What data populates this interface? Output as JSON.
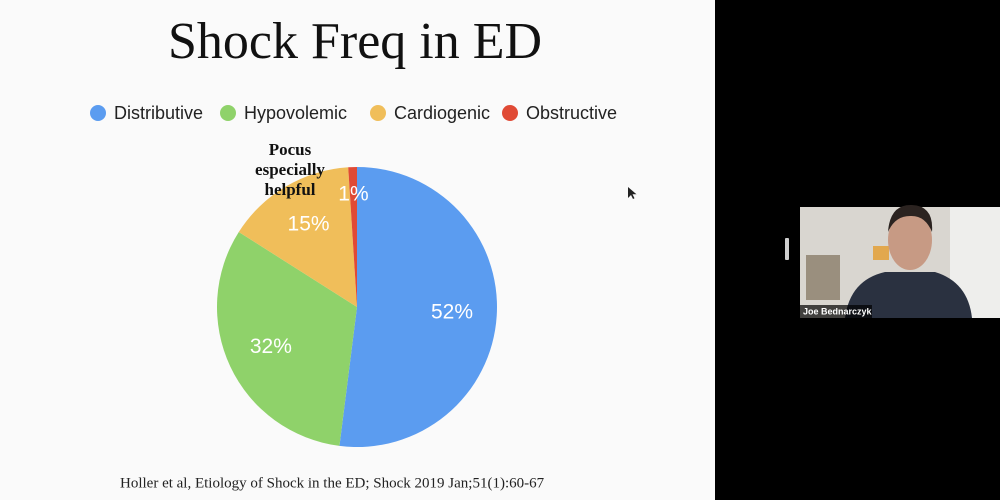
{
  "chart_data": {
    "type": "pie",
    "title": "Shock Freq in ED",
    "categories": [
      "Distributive",
      "Hypovolemic",
      "Cardiogenic",
      "Obstructive"
    ],
    "values": [
      52,
      32,
      15,
      1
    ],
    "value_labels": [
      "52%",
      "32%",
      "15%",
      "1%"
    ],
    "colors": [
      "#5b9cf0",
      "#8fd26a",
      "#f0be5a",
      "#e04a35"
    ],
    "annotation": [
      "Pocus",
      "especially",
      "helpful"
    ],
    "legend": "top"
  },
  "citation": "Holler et al, Etiology of Shock in the ED; Shock 2019 Jan;51(1):60-67",
  "participant": {
    "name": "Joe Bednarczyk"
  }
}
